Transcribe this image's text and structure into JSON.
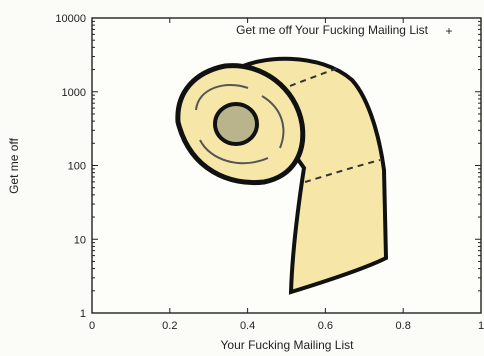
{
  "chart_data": {
    "type": "scatter",
    "xlabel": "Your Fucking Mailing List",
    "ylabel": "Get me off",
    "legend": {
      "label": "Get me off Your Fucking Mailing List",
      "marker": "+",
      "placement": "top-right"
    },
    "xlim": [
      0,
      1
    ],
    "ylim": [
      1,
      10000
    ],
    "yscale": "log",
    "xticks": [
      0,
      0.2,
      0.4,
      0.6,
      0.8,
      1
    ],
    "xtick_labels": [
      "0",
      "0.2",
      "0.4",
      "0.6",
      "0.8",
      "1"
    ],
    "yticks": [
      1,
      10,
      100,
      1000,
      10000
    ],
    "ytick_labels": [
      "1",
      "10",
      "100",
      "1000",
      "10000"
    ],
    "grid": false,
    "points": [
      {
        "x": 0.2,
        "y": 400
      },
      {
        "x": 0.21,
        "y": 600
      },
      {
        "x": 0.22,
        "y": 900
      },
      {
        "x": 0.24,
        "y": 1300
      },
      {
        "x": 0.26,
        "y": 1700
      },
      {
        "x": 0.3,
        "y": 2100
      },
      {
        "x": 0.34,
        "y": 2400
      },
      {
        "x": 0.4,
        "y": 2700
      },
      {
        "x": 0.46,
        "y": 3000
      },
      {
        "x": 0.52,
        "y": 3200
      },
      {
        "x": 0.58,
        "y": 3100
      },
      {
        "x": 0.63,
        "y": 2800
      },
      {
        "x": 0.67,
        "y": 2300
      },
      {
        "x": 0.7,
        "y": 1700
      },
      {
        "x": 0.72,
        "y": 1100
      },
      {
        "x": 0.74,
        "y": 500
      },
      {
        "x": 0.75,
        "y": 150
      },
      {
        "x": 0.75,
        "y": 40
      },
      {
        "x": 0.75,
        "y": 10
      },
      {
        "x": 0.75,
        "y": 5
      },
      {
        "x": 0.66,
        "y": 4
      },
      {
        "x": 0.58,
        "y": 2.5
      },
      {
        "x": 0.51,
        "y": 1.7
      },
      {
        "x": 0.51,
        "y": 5
      },
      {
        "x": 0.52,
        "y": 20
      },
      {
        "x": 0.52,
        "y": 60
      },
      {
        "x": 0.51,
        "y": 90
      },
      {
        "x": 0.46,
        "y": 80
      },
      {
        "x": 0.4,
        "y": 75
      },
      {
        "x": 0.34,
        "y": 75
      },
      {
        "x": 0.28,
        "y": 90
      },
      {
        "x": 0.23,
        "y": 120
      },
      {
        "x": 0.2,
        "y": 200
      }
    ],
    "colors": {
      "axis": "#222222",
      "fill": "#f6e7a8",
      "outline": "#111111",
      "core": "#b9b48b"
    }
  }
}
